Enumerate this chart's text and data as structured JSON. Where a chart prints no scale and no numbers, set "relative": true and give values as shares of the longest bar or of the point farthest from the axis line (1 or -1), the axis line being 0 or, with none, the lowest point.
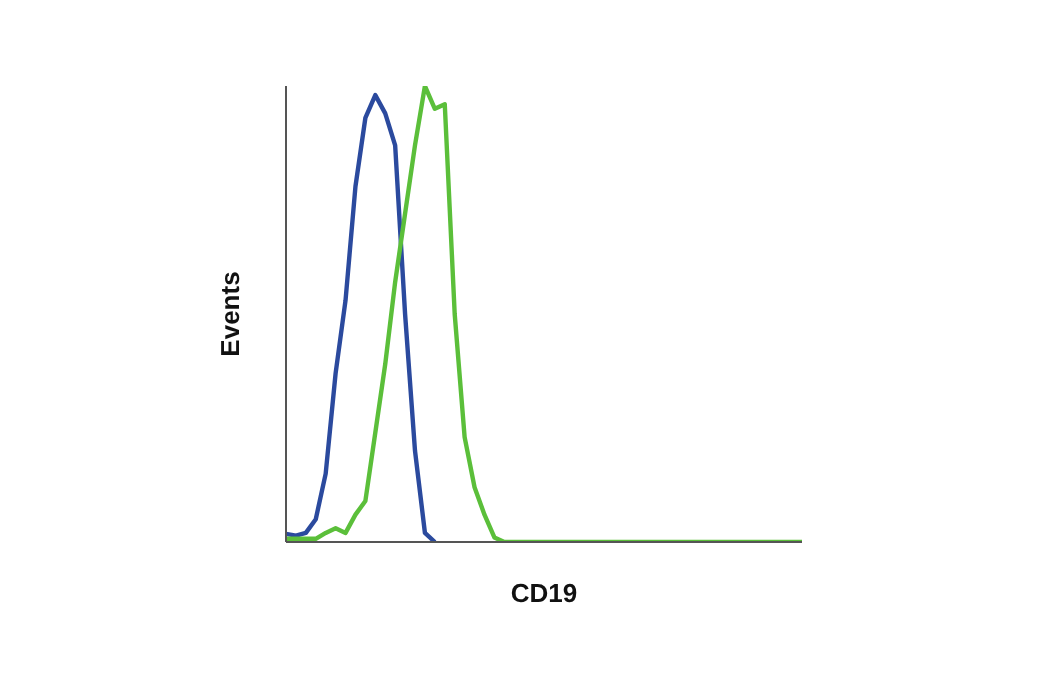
{
  "chart_data": {
    "type": "line",
    "xlabel": "CD19",
    "ylabel": "Events",
    "relative": true,
    "legend": false,
    "marker": "none",
    "line_style": "solid",
    "categories": [
      null,
      null,
      null,
      null,
      null,
      null,
      null,
      null,
      null,
      null,
      null,
      null,
      null,
      null,
      null,
      null,
      null,
      null,
      null,
      null,
      null,
      null,
      null,
      null,
      null,
      null,
      null,
      null,
      null,
      null,
      null,
      null,
      null,
      null,
      null,
      null,
      null,
      null,
      null,
      null,
      null,
      null,
      null,
      null,
      null,
      null,
      null,
      null,
      null,
      null,
      null,
      null,
      null
    ],
    "series": [
      {
        "color": "#2b4a9e",
        "values": [
          0.018,
          0.014,
          0.02,
          0.05,
          0.15,
          0.37,
          0.53,
          0.78,
          0.93,
          0.98,
          0.94,
          0.87,
          0.5,
          0.2,
          0.02,
          0,
          null,
          null,
          null,
          null,
          null,
          null,
          null,
          null,
          null,
          null,
          null,
          null,
          null,
          null,
          null,
          null,
          null,
          null,
          null,
          null,
          null,
          null,
          null,
          null,
          null,
          null,
          null,
          null,
          null,
          null,
          null,
          null,
          null,
          null,
          null,
          null,
          null
        ]
      },
      {
        "color": "#5bbf3a",
        "values": [
          0.007,
          0.007,
          0.007,
          0.007,
          0.02,
          0.03,
          0.02,
          0.06,
          0.09,
          0.24,
          0.39,
          0.57,
          0.72,
          0.87,
          1,
          0.95,
          0.96,
          0.5,
          0.23,
          0.12,
          0.06,
          0.01,
          0,
          0,
          0,
          0,
          0,
          0,
          0,
          0,
          0,
          0,
          0,
          0,
          0,
          0,
          0,
          0,
          0,
          0,
          0,
          0,
          0,
          0,
          0,
          0,
          0,
          0,
          0,
          0,
          0,
          0,
          0
        ]
      }
    ]
  }
}
